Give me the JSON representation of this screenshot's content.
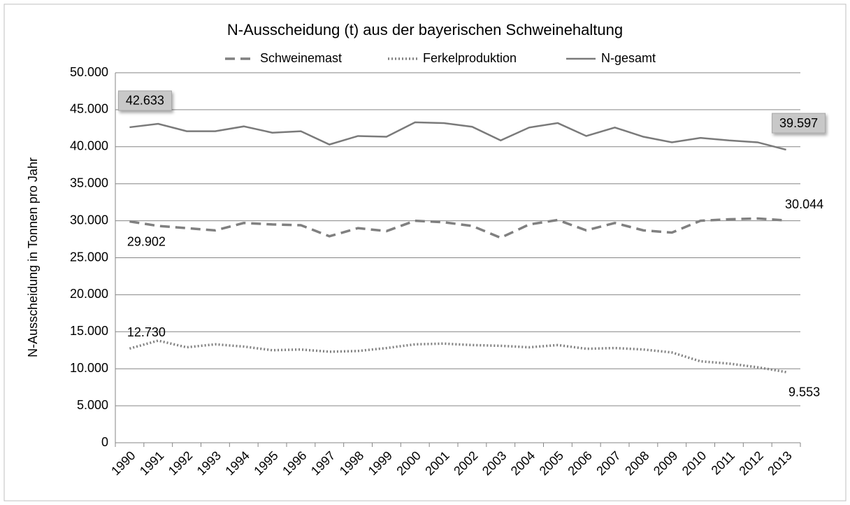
{
  "chart_data": {
    "type": "line",
    "title": "N-Ausscheidung (t) aus der bayerischen Schweinehaltung",
    "y_label": "N-Ausscheidung in Tonnen pro Jahr",
    "categories": [
      "1990",
      "1991",
      "1992",
      "1993",
      "1994",
      "1995",
      "1996",
      "1997",
      "1998",
      "1999",
      "2000",
      "2001",
      "2002",
      "2003",
      "2004",
      "2005",
      "2006",
      "2007",
      "2008",
      "2009",
      "2010",
      "2011",
      "2012",
      "2013"
    ],
    "ylim": [
      0,
      50000
    ],
    "yticks": [
      0,
      {
        "value": 5000,
        "label": "5.000"
      },
      {
        "value": 10000,
        "label": "10.000"
      },
      {
        "value": 15000,
        "label": "15.000"
      },
      {
        "value": 20000,
        "label": "20.000"
      },
      {
        "value": 25000,
        "label": "25.000"
      },
      {
        "value": 30000,
        "label": "30.000"
      },
      {
        "value": 35000,
        "label": "35.000"
      },
      {
        "value": 40000,
        "label": "40.000"
      },
      {
        "value": 45000,
        "label": "45.000"
      },
      {
        "value": 50000,
        "label": "50.000"
      }
    ],
    "grid": true,
    "legend": "top",
    "series": [
      {
        "name": "Schweinemast",
        "color": "#808080",
        "line_style": "dashed",
        "values": [
          29902,
          29300,
          29000,
          28700,
          29700,
          29500,
          29400,
          27900,
          29000,
          28600,
          30000,
          29800,
          29300,
          27700,
          29500,
          30100,
          28700,
          29700,
          28700,
          28400,
          30000,
          30200,
          30300,
          30044
        ],
        "value_labels": [
          "29.902",
          null,
          null,
          null,
          null,
          null,
          null,
          null,
          null,
          null,
          null,
          null,
          null,
          null,
          null,
          null,
          null,
          null,
          null,
          null,
          null,
          null,
          null,
          "30.044"
        ]
      },
      {
        "name": "Ferkelproduktion",
        "color": "#808080",
        "line_style": "dotted",
        "values": [
          12730,
          13800,
          12900,
          13300,
          13000,
          12500,
          12600,
          12300,
          12400,
          12800,
          13300,
          13400,
          13200,
          13100,
          12900,
          13200,
          12700,
          12800,
          12600,
          12200,
          11000,
          10700,
          10200,
          9553
        ],
        "value_labels": [
          "12.730",
          null,
          null,
          null,
          null,
          null,
          null,
          null,
          null,
          null,
          null,
          null,
          null,
          null,
          null,
          null,
          null,
          null,
          null,
          null,
          null,
          null,
          null,
          "9.553"
        ]
      },
      {
        "name": "N-gesamt",
        "color": "#7a7a7a",
        "line_style": "solid",
        "values": [
          42633,
          43100,
          42100,
          42100,
          42750,
          41900,
          42100,
          40300,
          41450,
          41350,
          43300,
          43200,
          42700,
          40850,
          42600,
          43200,
          41450,
          42600,
          41350,
          40600,
          41200,
          40850,
          40600,
          39597
        ],
        "value_labels": [
          "42.633",
          null,
          null,
          null,
          null,
          null,
          null,
          null,
          null,
          null,
          null,
          null,
          null,
          null,
          null,
          null,
          null,
          null,
          null,
          null,
          null,
          null,
          null,
          "39.597"
        ]
      }
    ]
  }
}
